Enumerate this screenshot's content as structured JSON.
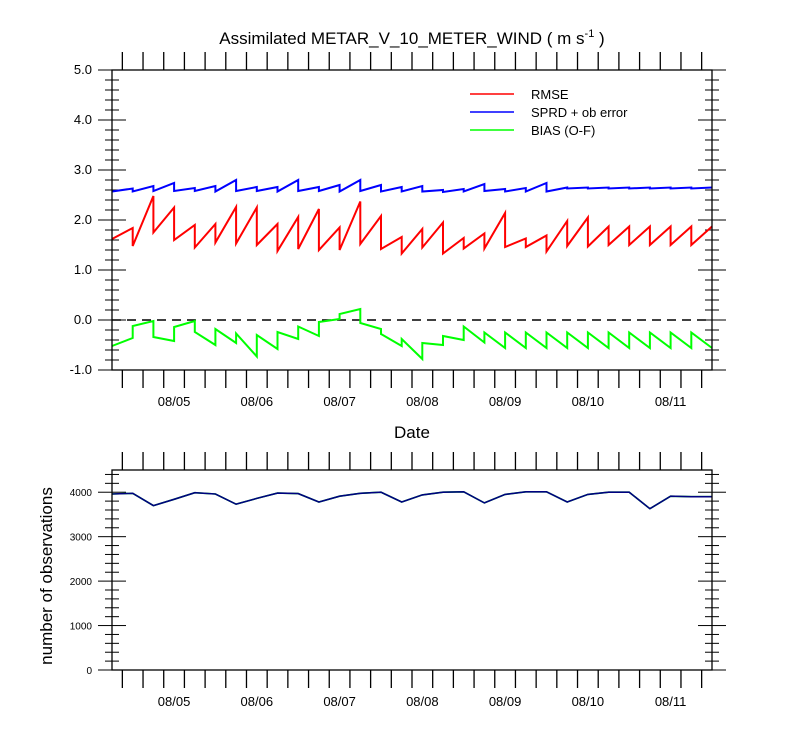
{
  "chart_data": [
    {
      "type": "line",
      "title_main": "Assimilated METAR_V_10_METER_WIND ( m s",
      "title_sup": "-1",
      "title_tail": " )",
      "xlabel": "Date",
      "ylabel": "",
      "ylim": [
        -1.0,
        5.0
      ],
      "xlim": [
        0,
        58
      ],
      "ytick_values": [
        -1.0,
        0.0,
        1.0,
        2.0,
        3.0,
        4.0,
        5.0
      ],
      "ytick_labels": [
        "-1.0",
        "0.0",
        "1.0",
        "2.0",
        "3.0",
        "4.0",
        "5.0"
      ],
      "xtick_positions": [
        6,
        14,
        22,
        30,
        38,
        46,
        54
      ],
      "xtick_labels": [
        "08/05",
        "08/06",
        "08/07",
        "08/08",
        "08/09",
        "08/10",
        "08/11"
      ],
      "legend_position": "top-right",
      "reference_line": {
        "y": 0.0,
        "style": "dashed"
      },
      "x": [
        0,
        2,
        2,
        4,
        4,
        6,
        6,
        8,
        8,
        10,
        10,
        12,
        12,
        14,
        14,
        16,
        16,
        18,
        18,
        20,
        20,
        22,
        22,
        24,
        24,
        26,
        26,
        28,
        28,
        30,
        30,
        32,
        32,
        34,
        34,
        36,
        36,
        38,
        38,
        40,
        40,
        42,
        42,
        44,
        44,
        46,
        46,
        48,
        48,
        50,
        50,
        52,
        52,
        54,
        54,
        56,
        56,
        58
      ],
      "series": [
        {
          "name": "RMSE",
          "color": "#ff0000",
          "values": [
            1.62,
            1.84,
            1.48,
            2.48,
            1.75,
            2.25,
            1.6,
            1.9,
            1.45,
            1.92,
            1.55,
            2.26,
            1.53,
            2.25,
            1.5,
            1.92,
            1.38,
            2.06,
            1.42,
            2.22,
            1.4,
            1.85,
            1.4,
            2.37,
            1.52,
            2.08,
            1.42,
            1.66,
            1.33,
            1.82,
            1.45,
            1.95,
            1.33,
            1.64,
            1.43,
            1.73,
            1.43,
            2.14,
            1.46,
            1.63,
            1.46,
            1.69,
            1.37,
            1.98,
            1.48,
            2.05,
            1.47,
            1.87,
            1.5,
            1.87,
            1.5,
            1.87,
            1.5,
            1.87,
            1.5,
            1.87,
            1.5,
            1.87
          ]
        },
        {
          "name": "SPRD + ob error",
          "color": "#0000ff",
          "values": [
            2.57,
            2.63,
            2.57,
            2.68,
            2.58,
            2.74,
            2.58,
            2.64,
            2.58,
            2.68,
            2.57,
            2.8,
            2.58,
            2.66,
            2.58,
            2.66,
            2.57,
            2.8,
            2.58,
            2.66,
            2.58,
            2.7,
            2.57,
            2.8,
            2.58,
            2.7,
            2.57,
            2.66,
            2.57,
            2.68,
            2.57,
            2.6,
            2.56,
            2.62,
            2.57,
            2.72,
            2.58,
            2.62,
            2.57,
            2.64,
            2.57,
            2.74,
            2.57,
            2.65,
            2.63,
            2.65,
            2.63,
            2.65,
            2.63,
            2.65,
            2.63,
            2.65,
            2.63,
            2.65,
            2.63,
            2.65,
            2.63,
            2.65
          ]
        },
        {
          "name": "BIAS (O-F)",
          "color": "#00ff00",
          "values": [
            -0.52,
            -0.36,
            -0.12,
            -0.02,
            -0.34,
            -0.42,
            -0.14,
            -0.02,
            -0.24,
            -0.5,
            -0.18,
            -0.46,
            -0.27,
            -0.73,
            -0.3,
            -0.58,
            -0.24,
            -0.38,
            -0.13,
            -0.32,
            -0.04,
            0.02,
            0.12,
            0.22,
            -0.06,
            -0.18,
            -0.28,
            -0.52,
            -0.38,
            -0.78,
            -0.46,
            -0.5,
            -0.32,
            -0.4,
            -0.13,
            -0.45,
            -0.25,
            -0.56,
            -0.25,
            -0.56,
            -0.25,
            -0.56,
            -0.25,
            -0.56,
            -0.25,
            -0.56,
            -0.25,
            -0.56,
            -0.25,
            -0.56,
            -0.25,
            -0.56,
            -0.25,
            -0.56,
            -0.25,
            -0.56,
            -0.25,
            -0.56
          ]
        }
      ]
    },
    {
      "type": "line",
      "title": "",
      "xlabel": "",
      "ylabel": "number of observations",
      "ylim": [
        0,
        4500
      ],
      "xlim": [
        0,
        58
      ],
      "ytick_values": [
        0,
        1000,
        2000,
        3000,
        4000
      ],
      "ytick_labels": [
        "0",
        "1000",
        "2000",
        "3000",
        "4000"
      ],
      "xtick_positions": [
        6,
        14,
        22,
        30,
        38,
        46,
        54
      ],
      "xtick_labels": [
        "08/05",
        "08/06",
        "08/07",
        "08/08",
        "08/09",
        "08/10",
        "08/11"
      ],
      "x": [
        0,
        2,
        4,
        6,
        8,
        10,
        12,
        14,
        16,
        18,
        20,
        22,
        24,
        26,
        28,
        30,
        32,
        34,
        36,
        38,
        40,
        42,
        44,
        46,
        48,
        50,
        52,
        54,
        56,
        58
      ],
      "series": [
        {
          "color": "#00ff00",
          "values": [
            3960,
            3975,
            3700,
            3840,
            3990,
            3960,
            3730,
            3860,
            3980,
            3970,
            3780,
            3910,
            3975,
            4000,
            3780,
            3940,
            4000,
            4010,
            3760,
            3950,
            4010,
            4010,
            3780,
            3950,
            4000,
            4000,
            3630,
            3910,
            3900,
            3900
          ]
        },
        {
          "color": "#000080",
          "values": [
            3960,
            3975,
            3700,
            3840,
            3990,
            3960,
            3730,
            3860,
            3980,
            3970,
            3780,
            3910,
            3975,
            4000,
            3780,
            3940,
            4000,
            4010,
            3760,
            3950,
            4010,
            4010,
            3780,
            3950,
            4000,
            4000,
            3630,
            3910,
            3900,
            3900
          ]
        }
      ]
    }
  ]
}
